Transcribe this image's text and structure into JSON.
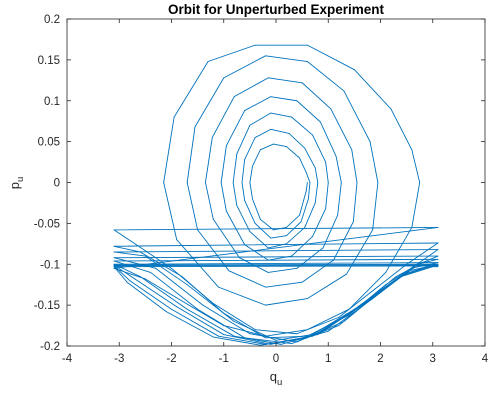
{
  "chart_data": {
    "type": "line",
    "title": "Orbit for Unperturbed Experiment",
    "xlabel": {
      "base": "q",
      "sub": "u"
    },
    "ylabel": {
      "base": "p",
      "sub": "u"
    },
    "xlim": [
      -4,
      4
    ],
    "ylim": [
      -0.2,
      0.2
    ],
    "xticks": [
      -4,
      -3,
      -2,
      -1,
      0,
      1,
      2,
      3,
      4
    ],
    "xtick_labels": [
      "-4",
      "-3",
      "-2",
      "-1",
      "0",
      "1",
      "2",
      "3",
      "4"
    ],
    "yticks": [
      -0.2,
      -0.15,
      -0.1,
      -0.05,
      0,
      0.05,
      0.1,
      0.15,
      0.2
    ],
    "ytick_labels": [
      "-0.2",
      "-0.15",
      "-0.1",
      "-0.05",
      "0",
      "0.05",
      "0.1",
      "0.15",
      "0.2"
    ],
    "grid": false,
    "box": true,
    "line_color": "#0072BD",
    "series": [
      {
        "points": [
          [
            0.6,
            0.0
          ],
          [
            0.58,
            -0.01
          ],
          [
            0.45,
            -0.04
          ],
          [
            0.2,
            -0.055
          ],
          [
            -0.05,
            -0.058
          ],
          [
            -0.3,
            -0.045
          ],
          [
            -0.45,
            -0.02
          ],
          [
            -0.5,
            0.0
          ],
          [
            -0.45,
            0.02
          ],
          [
            -0.3,
            0.04
          ],
          [
            -0.05,
            0.047
          ],
          [
            0.2,
            0.044
          ],
          [
            0.45,
            0.03
          ],
          [
            0.58,
            0.012
          ],
          [
            0.65,
            0.0
          ],
          [
            0.62,
            -0.02
          ],
          [
            0.48,
            -0.048
          ],
          [
            0.2,
            -0.065
          ],
          [
            -0.1,
            -0.068
          ],
          [
            -0.4,
            -0.05
          ],
          [
            -0.6,
            -0.022
          ],
          [
            -0.65,
            0.0
          ],
          [
            -0.6,
            0.028
          ],
          [
            -0.4,
            0.055
          ],
          [
            -0.1,
            0.065
          ],
          [
            0.25,
            0.06
          ],
          [
            0.55,
            0.042
          ],
          [
            0.75,
            0.018
          ],
          [
            0.8,
            0.0
          ],
          [
            0.75,
            -0.025
          ],
          [
            0.55,
            -0.055
          ],
          [
            0.2,
            -0.075
          ],
          [
            -0.15,
            -0.08
          ],
          [
            -0.5,
            -0.06
          ],
          [
            -0.75,
            -0.028
          ],
          [
            -0.82,
            0.0
          ],
          [
            -0.75,
            0.035
          ],
          [
            -0.5,
            0.07
          ],
          [
            -0.1,
            0.085
          ],
          [
            0.3,
            0.08
          ],
          [
            0.7,
            0.058
          ],
          [
            0.95,
            0.025
          ],
          [
            1.0,
            0.0
          ],
          [
            0.95,
            -0.032
          ],
          [
            0.7,
            -0.066
          ],
          [
            0.3,
            -0.09
          ],
          [
            -0.15,
            -0.095
          ],
          [
            -0.6,
            -0.076
          ],
          [
            -0.95,
            -0.035
          ],
          [
            -1.05,
            0.0
          ],
          [
            -0.95,
            0.045
          ],
          [
            -0.6,
            0.088
          ],
          [
            -0.1,
            0.105
          ],
          [
            0.4,
            0.1
          ],
          [
            0.85,
            0.074
          ],
          [
            1.15,
            0.032
          ],
          [
            1.25,
            0.0
          ],
          [
            1.18,
            -0.04
          ],
          [
            0.9,
            -0.08
          ],
          [
            0.4,
            -0.105
          ],
          [
            -0.15,
            -0.11
          ],
          [
            -0.7,
            -0.092
          ],
          [
            -1.2,
            -0.045
          ],
          [
            -1.35,
            0.0
          ],
          [
            -1.22,
            0.055
          ],
          [
            -0.8,
            0.105
          ],
          [
            -0.15,
            0.128
          ],
          [
            0.5,
            0.122
          ],
          [
            1.05,
            0.09
          ],
          [
            1.45,
            0.04
          ],
          [
            1.55,
            0.0
          ],
          [
            1.48,
            -0.048
          ],
          [
            1.1,
            -0.095
          ],
          [
            0.5,
            -0.122
          ],
          [
            -0.2,
            -0.128
          ],
          [
            -0.9,
            -0.108
          ],
          [
            -1.5,
            -0.058
          ],
          [
            -1.7,
            0.0
          ],
          [
            -1.55,
            0.068
          ],
          [
            -1.0,
            0.128
          ],
          [
            -0.2,
            0.155
          ],
          [
            0.6,
            0.148
          ],
          [
            1.3,
            0.112
          ],
          [
            1.8,
            0.05
          ],
          [
            1.95,
            0.0
          ],
          [
            1.85,
            -0.058
          ],
          [
            1.35,
            -0.112
          ],
          [
            0.6,
            -0.142
          ],
          [
            -0.2,
            -0.15
          ],
          [
            -1.1,
            -0.128
          ],
          [
            -1.9,
            -0.07
          ],
          [
            -2.15,
            0.0
          ],
          [
            -1.95,
            0.08
          ],
          [
            -1.3,
            0.148
          ],
          [
            -0.4,
            0.168
          ],
          [
            0.6,
            0.168
          ],
          [
            1.5,
            0.138
          ],
          [
            2.2,
            0.09
          ],
          [
            2.6,
            0.04
          ],
          [
            2.75,
            0.0
          ],
          [
            2.6,
            -0.055
          ],
          [
            2.1,
            -0.11
          ],
          [
            1.4,
            -0.155
          ],
          [
            0.6,
            -0.18
          ],
          [
            -0.2,
            -0.188
          ],
          [
            -1.0,
            -0.175
          ],
          [
            -1.8,
            -0.145
          ],
          [
            -2.5,
            -0.118
          ],
          [
            -3.1,
            -0.105
          ],
          [
            3.1,
            -0.055
          ],
          [
            -3.1,
            -0.058
          ],
          [
            -2.7,
            -0.075
          ],
          [
            -2.0,
            -0.105
          ],
          [
            -1.2,
            -0.148
          ],
          [
            -0.4,
            -0.18
          ],
          [
            0.4,
            -0.185
          ],
          [
            1.2,
            -0.165
          ],
          [
            1.9,
            -0.13
          ],
          [
            2.5,
            -0.1
          ],
          [
            3.1,
            -0.074
          ],
          [
            -3.1,
            -0.078
          ],
          [
            -2.6,
            -0.085
          ],
          [
            -1.8,
            -0.115
          ],
          [
            -1.0,
            -0.16
          ],
          [
            -0.2,
            -0.19
          ],
          [
            0.6,
            -0.188
          ],
          [
            1.4,
            -0.162
          ],
          [
            2.1,
            -0.125
          ],
          [
            2.7,
            -0.1
          ],
          [
            3.1,
            -0.082
          ],
          [
            -3.1,
            -0.085
          ],
          [
            -2.5,
            -0.09
          ],
          [
            -1.7,
            -0.125
          ],
          [
            -0.8,
            -0.17
          ],
          [
            0.0,
            -0.193
          ],
          [
            0.8,
            -0.185
          ],
          [
            1.6,
            -0.152
          ],
          [
            2.3,
            -0.115
          ],
          [
            2.8,
            -0.098
          ],
          [
            3.1,
            -0.09
          ],
          [
            -3.1,
            -0.092
          ],
          [
            -2.3,
            -0.105
          ],
          [
            -1.4,
            -0.15
          ],
          [
            -0.5,
            -0.185
          ],
          [
            0.4,
            -0.195
          ],
          [
            1.3,
            -0.17
          ],
          [
            2.1,
            -0.128
          ],
          [
            2.7,
            -0.1
          ],
          [
            3.1,
            -0.094
          ],
          [
            -3.1,
            -0.096
          ],
          [
            -2.4,
            -0.11
          ],
          [
            -1.5,
            -0.155
          ],
          [
            -0.6,
            -0.19
          ],
          [
            0.3,
            -0.197
          ],
          [
            1.2,
            -0.175
          ],
          [
            2.0,
            -0.133
          ],
          [
            2.65,
            -0.104
          ],
          [
            3.1,
            -0.098
          ],
          [
            -3.1,
            -0.1
          ],
          [
            -2.6,
            -0.115
          ],
          [
            -1.7,
            -0.155
          ],
          [
            -0.8,
            -0.188
          ],
          [
            0.1,
            -0.198
          ],
          [
            1.0,
            -0.182
          ],
          [
            1.85,
            -0.142
          ],
          [
            2.55,
            -0.108
          ],
          [
            3.1,
            -0.1
          ],
          [
            -3.1,
            -0.101
          ],
          [
            -2.7,
            -0.118
          ],
          [
            -1.9,
            -0.152
          ],
          [
            -1.0,
            -0.186
          ],
          [
            -0.1,
            -0.198
          ],
          [
            0.8,
            -0.186
          ],
          [
            1.7,
            -0.148
          ],
          [
            2.45,
            -0.112
          ],
          [
            3.0,
            -0.101
          ],
          [
            3.1,
            -0.101
          ],
          [
            -3.1,
            -0.102
          ],
          [
            -2.8,
            -0.12
          ],
          [
            -2.0,
            -0.155
          ],
          [
            -1.1,
            -0.188
          ],
          [
            -0.2,
            -0.198
          ],
          [
            0.7,
            -0.188
          ],
          [
            1.6,
            -0.152
          ],
          [
            2.4,
            -0.114
          ],
          [
            3.0,
            -0.102
          ],
          [
            3.1,
            -0.102
          ],
          [
            -3.1,
            -0.103
          ],
          [
            -2.85,
            -0.122
          ],
          [
            -2.1,
            -0.158
          ],
          [
            -1.2,
            -0.189
          ],
          [
            -0.3,
            -0.199
          ],
          [
            0.6,
            -0.19
          ],
          [
            1.5,
            -0.155
          ],
          [
            2.35,
            -0.116
          ],
          [
            3.0,
            -0.103
          ],
          [
            3.1,
            -0.103
          ]
        ]
      }
    ]
  }
}
